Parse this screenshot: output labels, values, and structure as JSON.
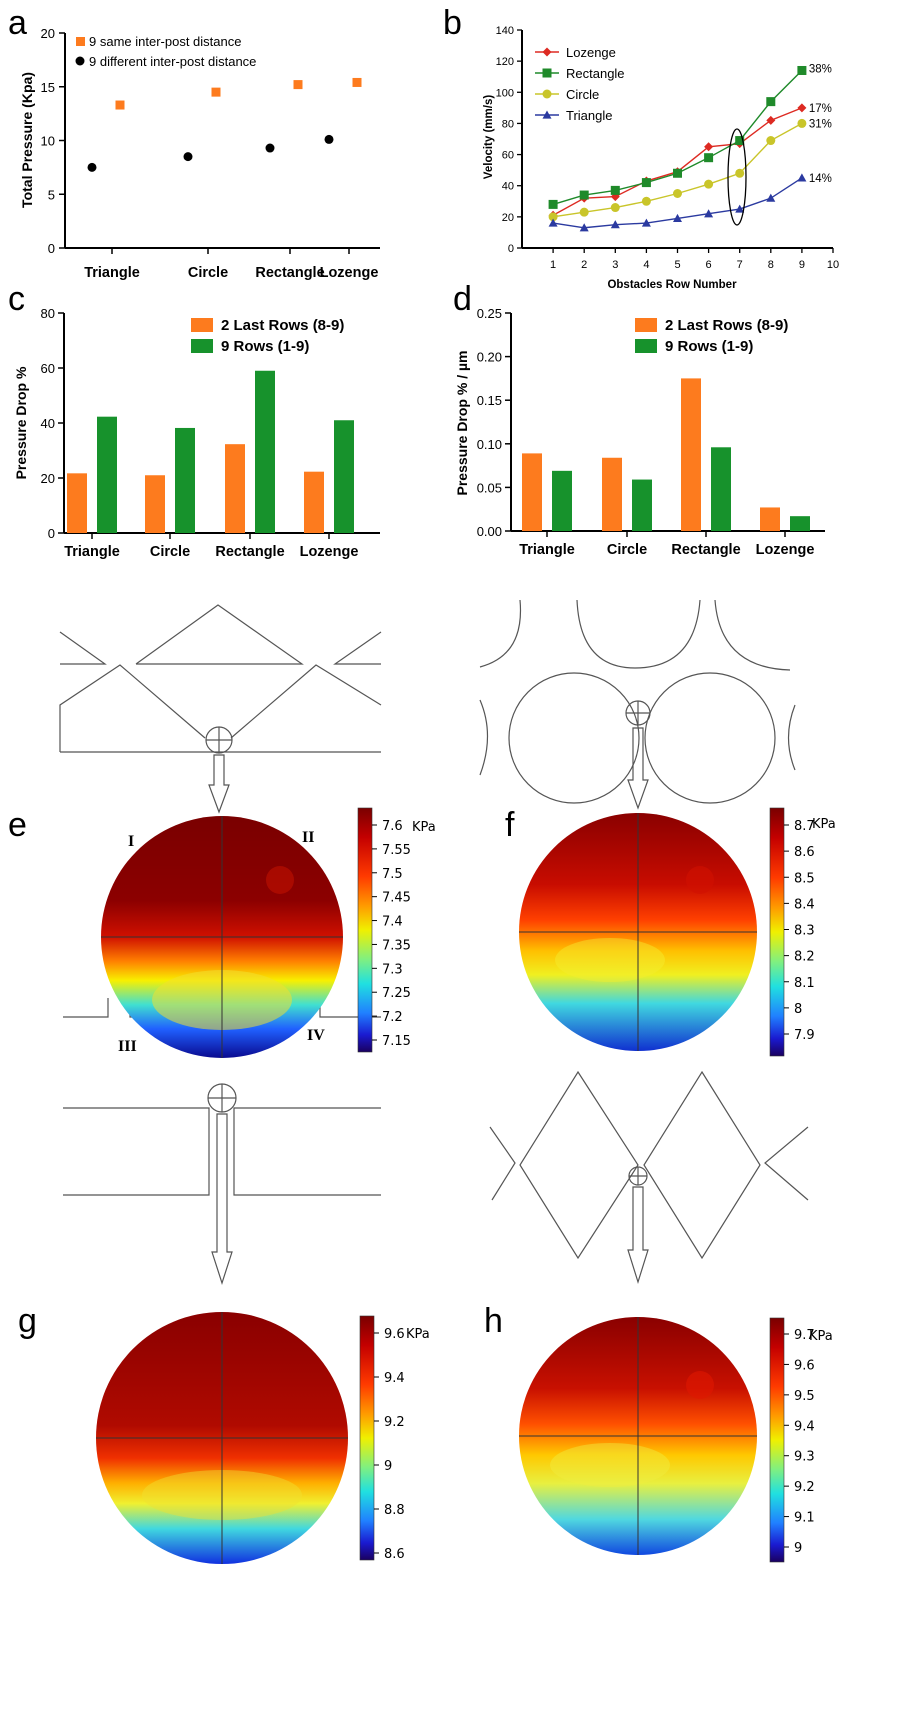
{
  "panels": {
    "a": "a",
    "b": "b",
    "c": "c",
    "d": "d",
    "e": "e",
    "f": "f",
    "g": "g",
    "h": "h"
  },
  "colors": {
    "orange": "#fd7b1e",
    "green": "#17922c",
    "black": "#000000",
    "lozenge": "#dd2a22",
    "rectangle": "#1f8a2a",
    "circle": "#c9c52a",
    "triangle": "#2b3aa0"
  },
  "chart_data": [
    {
      "id": "a",
      "type": "scatter",
      "categories": [
        "Triangle",
        "Circle",
        "Rectangle",
        "Lozenge"
      ],
      "ylabel": "Total Pressure (Kpa)",
      "ylim": [
        0,
        20
      ],
      "yticks": [
        0,
        5,
        10,
        15,
        20
      ],
      "legend": "top-left",
      "series": [
        {
          "name": "9 same inter-post distance",
          "marker": "square",
          "color": "#fd7b1e",
          "values": [
            13.3,
            14.5,
            15.2,
            15.4
          ]
        },
        {
          "name": "9 different inter-post distance",
          "marker": "circle",
          "color": "#000000",
          "values": [
            7.5,
            8.5,
            9.3,
            10.1
          ]
        }
      ]
    },
    {
      "id": "b",
      "type": "line",
      "xlabel": "Obstacles Row Number",
      "ylabel": "Velocity (mm/s)",
      "x": [
        1,
        2,
        3,
        4,
        5,
        6,
        7,
        8,
        9
      ],
      "xlim": [
        0,
        10
      ],
      "xticks": [
        1,
        2,
        3,
        4,
        5,
        6,
        7,
        8,
        9,
        10
      ],
      "ylim": [
        0,
        140
      ],
      "yticks": [
        0,
        20,
        40,
        60,
        80,
        100,
        120,
        140
      ],
      "legend": "top-left",
      "series": [
        {
          "name": "Lozenge",
          "marker": "diamond",
          "color": "#dd2a22",
          "values": [
            21,
            32,
            33,
            43,
            49,
            65,
            67,
            82,
            90
          ],
          "end_label": "17%"
        },
        {
          "name": "Rectangle",
          "marker": "square",
          "color": "#1f8a2a",
          "values": [
            28,
            34,
            37,
            42,
            48,
            58,
            69,
            94,
            114
          ],
          "end_label": "38%"
        },
        {
          "name": "Circle",
          "marker": "circle",
          "color": "#c9c52a",
          "values": [
            20,
            23,
            26,
            30,
            35,
            41,
            48,
            69,
            80
          ],
          "end_label": "31%"
        },
        {
          "name": "Triangle",
          "marker": "triangle",
          "color": "#2b3aa0",
          "values": [
            16,
            13,
            15,
            16,
            19,
            22,
            25,
            32,
            45
          ],
          "end_label": "14%"
        }
      ],
      "annotation": "ellipse around row 7"
    },
    {
      "id": "c",
      "type": "bar",
      "categories": [
        "Triangle",
        "Circle",
        "Rectangle",
        "Lozenge"
      ],
      "ylabel": "Pressure Drop %",
      "ylim": [
        0,
        80
      ],
      "yticks": [
        0,
        20,
        40,
        60,
        80
      ],
      "legend": "top-right",
      "series": [
        {
          "name": "2 Last Rows (8-9)",
          "color": "#fd7b1e",
          "values": [
            21.7,
            21,
            32.3,
            22.3
          ]
        },
        {
          "name": "9 Rows (1-9)",
          "color": "#17922c",
          "values": [
            42.3,
            38.2,
            59,
            41
          ]
        }
      ]
    },
    {
      "id": "d",
      "type": "bar",
      "categories": [
        "Triangle",
        "Circle",
        "Rectangle",
        "Lozenge"
      ],
      "ylabel": "Pressure Drop % / µm",
      "ylim": [
        0,
        0.25
      ],
      "yticks": [
        "0.00",
        "0.05",
        "0.10",
        "0.15",
        "0.20",
        "0.25"
      ],
      "legend": "top-right",
      "series": [
        {
          "name": "2 Last Rows (8-9)",
          "color": "#fd7b1e",
          "values": [
            0.089,
            0.084,
            0.175,
            0.027
          ]
        },
        {
          "name": "9 Rows (1-9)",
          "color": "#17922c",
          "values": [
            0.069,
            0.059,
            0.096,
            0.017
          ]
        }
      ]
    },
    {
      "id": "e",
      "type": "heatmap",
      "colorbar_unit": "KPa",
      "colorbar_ticks": [
        "7.6",
        "7.55",
        "7.5",
        "7.45",
        "7.4",
        "7.35",
        "7.3",
        "7.25",
        "7.2",
        "7.15"
      ],
      "quadrant_labels": [
        "I",
        "II",
        "III",
        "IV"
      ]
    },
    {
      "id": "f",
      "type": "heatmap",
      "colorbar_unit": "KPa",
      "colorbar_ticks": [
        "8.7",
        "8.6",
        "8.5",
        "8.4",
        "8.3",
        "8.2",
        "8.1",
        "8",
        "7.9"
      ]
    },
    {
      "id": "g",
      "type": "heatmap",
      "colorbar_unit": "KPa",
      "colorbar_ticks": [
        "9.6",
        "9.4",
        "9.2",
        "9",
        "8.8",
        "8.6"
      ]
    },
    {
      "id": "h",
      "type": "heatmap",
      "colorbar_unit": "KPa",
      "colorbar_ticks": [
        "9.7",
        "9.6",
        "9.5",
        "9.4",
        "9.3",
        "9.2",
        "9.1",
        "9"
      ]
    }
  ]
}
